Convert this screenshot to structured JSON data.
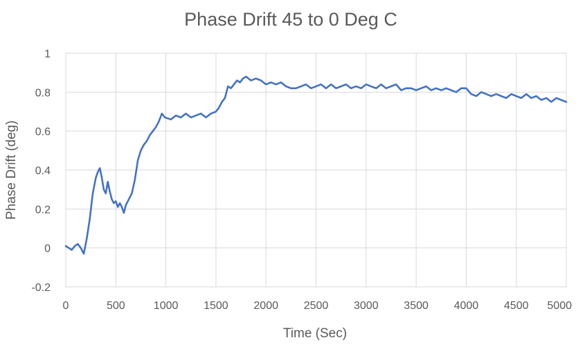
{
  "chart_data": {
    "type": "line",
    "title": "Phase Drift 45 to 0 Deg C",
    "xlabel": "Time (Sec)",
    "ylabel": "Phase Drift (deg)",
    "xlim": [
      0,
      5000
    ],
    "ylim": [
      -0.2,
      1
    ],
    "x_ticks": [
      0,
      500,
      1000,
      1500,
      2000,
      2500,
      3000,
      3500,
      4000,
      4500,
      5000
    ],
    "y_ticks": [
      -0.2,
      0,
      0.2,
      0.4,
      0.6,
      0.8,
      1
    ],
    "x_tick_labels": [
      "0",
      "500",
      "1000",
      "1500",
      "2000",
      "2500",
      "3000",
      "3500",
      "4000",
      "4500",
      "5000"
    ],
    "y_tick_labels": [
      "-0.2",
      "0",
      "0.2",
      "0.4",
      "0.6",
      "0.8",
      "1"
    ],
    "grid": true,
    "legend": "none",
    "series": [
      {
        "color": "#4472c4",
        "x": [
          0,
          30,
          60,
          90,
          120,
          150,
          180,
          210,
          240,
          270,
          300,
          320,
          340,
          360,
          380,
          400,
          420,
          440,
          460,
          480,
          500,
          520,
          540,
          560,
          580,
          600,
          630,
          660,
          690,
          720,
          750,
          780,
          810,
          840,
          870,
          900,
          930,
          960,
          990,
          1050,
          1100,
          1150,
          1200,
          1250,
          1300,
          1350,
          1400,
          1450,
          1500,
          1530,
          1560,
          1590,
          1620,
          1650,
          1680,
          1710,
          1740,
          1770,
          1800,
          1850,
          1900,
          1950,
          2000,
          2050,
          2100,
          2150,
          2200,
          2250,
          2300,
          2350,
          2400,
          2450,
          2500,
          2550,
          2600,
          2650,
          2700,
          2750,
          2800,
          2850,
          2900,
          2950,
          3000,
          3050,
          3100,
          3150,
          3200,
          3250,
          3300,
          3350,
          3400,
          3450,
          3500,
          3550,
          3600,
          3650,
          3700,
          3750,
          3800,
          3850,
          3900,
          3950,
          4000,
          4050,
          4100,
          4150,
          4200,
          4250,
          4300,
          4350,
          4400,
          4450,
          4500,
          4550,
          4600,
          4650,
          4700,
          4750,
          4800,
          4850,
          4900,
          4950,
          5000
        ],
        "y": [
          0.01,
          0.0,
          -0.01,
          0.01,
          0.02,
          0.0,
          -0.03,
          0.05,
          0.15,
          0.28,
          0.36,
          0.39,
          0.41,
          0.36,
          0.3,
          0.28,
          0.34,
          0.29,
          0.25,
          0.23,
          0.24,
          0.21,
          0.23,
          0.21,
          0.18,
          0.22,
          0.25,
          0.28,
          0.35,
          0.45,
          0.5,
          0.53,
          0.55,
          0.58,
          0.6,
          0.62,
          0.65,
          0.69,
          0.67,
          0.66,
          0.68,
          0.67,
          0.69,
          0.67,
          0.68,
          0.69,
          0.67,
          0.69,
          0.7,
          0.72,
          0.75,
          0.77,
          0.83,
          0.82,
          0.84,
          0.86,
          0.85,
          0.87,
          0.88,
          0.86,
          0.87,
          0.86,
          0.84,
          0.85,
          0.84,
          0.85,
          0.83,
          0.82,
          0.82,
          0.83,
          0.84,
          0.82,
          0.83,
          0.84,
          0.82,
          0.84,
          0.82,
          0.83,
          0.84,
          0.82,
          0.83,
          0.82,
          0.84,
          0.83,
          0.82,
          0.84,
          0.82,
          0.83,
          0.84,
          0.81,
          0.82,
          0.82,
          0.81,
          0.82,
          0.83,
          0.81,
          0.82,
          0.81,
          0.82,
          0.81,
          0.8,
          0.82,
          0.82,
          0.79,
          0.78,
          0.8,
          0.79,
          0.78,
          0.79,
          0.78,
          0.77,
          0.79,
          0.78,
          0.77,
          0.79,
          0.77,
          0.78,
          0.76,
          0.77,
          0.75,
          0.77,
          0.76,
          0.75
        ]
      }
    ]
  }
}
